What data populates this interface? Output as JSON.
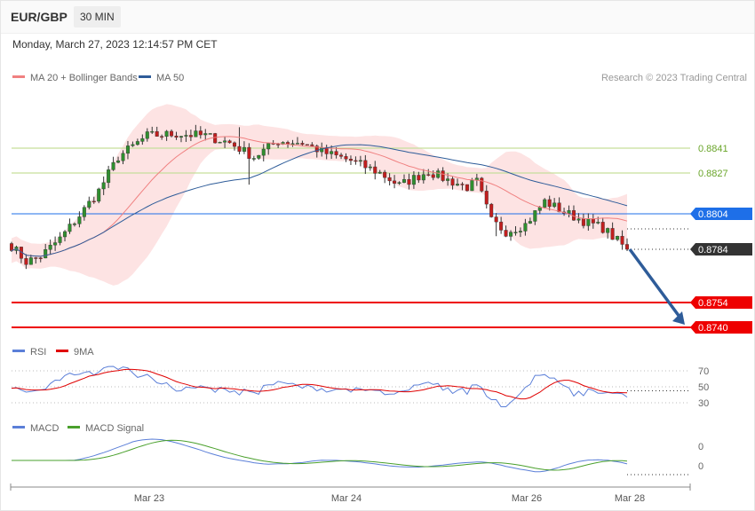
{
  "header": {
    "symbol": "EUR/GBP",
    "timeframe": "30 MIN",
    "datetime": "Monday, March 27, 2023 12:14:57 PM CET"
  },
  "legend": {
    "items": [
      {
        "label": "MA 20 + Bollinger Bands",
        "color": "#f08080"
      },
      {
        "label": "MA 50",
        "color": "#2e5c99"
      }
    ],
    "copyright": "Research © 2023 Trading Central"
  },
  "chart_data": [
    {
      "type": "candlestick",
      "title": "EUR/GBP",
      "ylim": [
        0.873,
        0.886
      ],
      "series": [
        {
          "name": "MA 20 + Bollinger Bands",
          "color": "#f08080"
        },
        {
          "name": "MA 50",
          "color": "#2e5c99"
        }
      ],
      "levels": [
        {
          "value": 0.8841,
          "label": "0.8841",
          "kind": "resistance",
          "color": "#8cbf3f"
        },
        {
          "value": 0.8827,
          "label": "0.8827",
          "kind": "resistance",
          "color": "#8cbf3f"
        },
        {
          "value": 0.8804,
          "label": "0.8804",
          "kind": "pivot",
          "color": "#1e6fe8"
        },
        {
          "value": 0.8784,
          "label": "0.8784",
          "kind": "last",
          "color": "#333333"
        },
        {
          "value": 0.8754,
          "label": "0.8754",
          "kind": "support",
          "color": "#ee0000"
        },
        {
          "value": 0.874,
          "label": "0.8740",
          "kind": "support",
          "color": "#ee0000"
        }
      ],
      "x_labels": [
        "Mar 23",
        "Mar 24",
        "Mar 26",
        "Mar 28"
      ],
      "trend_arrow": {
        "from": 0.8784,
        "to": 0.874,
        "direction": "down",
        "color": "#2e5c99"
      }
    },
    {
      "type": "line",
      "series": [
        {
          "name": "RSI",
          "color": "#5b7fd8"
        },
        {
          "name": "9MA",
          "color": "#e00000"
        }
      ],
      "y_ticks": [
        "70",
        "50",
        "30"
      ],
      "ylim": [
        20,
        80
      ]
    },
    {
      "type": "line",
      "series": [
        {
          "name": "MACD",
          "color": "#5b7fd8"
        },
        {
          "name": "MACD Signal",
          "color": "#4aa02c"
        }
      ],
      "y_ticks": [
        "0",
        "0"
      ]
    }
  ]
}
